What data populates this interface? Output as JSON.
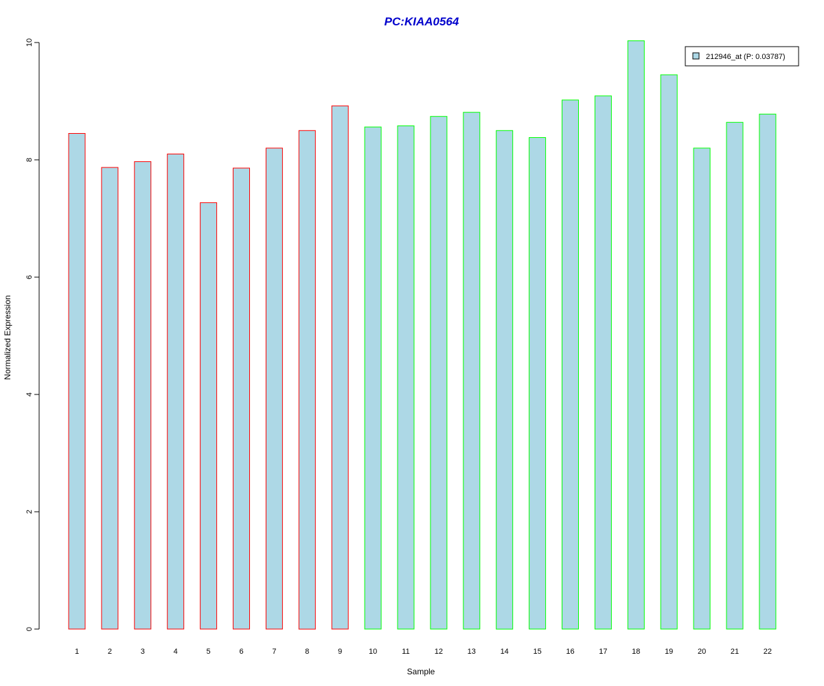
{
  "chart_data": {
    "type": "bar",
    "title": "PC:KIAA0564",
    "xlabel": "Sample",
    "ylabel": "Normalized Expression",
    "ylim": [
      0,
      10
    ],
    "yticks": [
      0,
      2,
      4,
      6,
      8,
      10
    ],
    "categories": [
      "1",
      "2",
      "3",
      "4",
      "5",
      "6",
      "7",
      "8",
      "9",
      "10",
      "11",
      "12",
      "13",
      "14",
      "15",
      "16",
      "17",
      "18",
      "19",
      "20",
      "21",
      "22"
    ],
    "series": [
      {
        "name": "212946_at (P: 0.03787)",
        "values": [
          8.45,
          7.87,
          7.97,
          8.1,
          7.27,
          7.86,
          8.2,
          8.5,
          8.92,
          8.56,
          8.58,
          8.74,
          8.81,
          8.5,
          8.38,
          9.02,
          9.09,
          10.03,
          9.45,
          8.2,
          8.64,
          8.78
        ]
      }
    ],
    "bar_fill_color": "#add8e6",
    "group_border_colors": [
      "#ff0000",
      "#ff0000",
      "#ff0000",
      "#ff0000",
      "#ff0000",
      "#ff0000",
      "#ff0000",
      "#ff0000",
      "#ff0000",
      "#00ff00",
      "#00ff00",
      "#00ff00",
      "#00ff00",
      "#00ff00",
      "#00ff00",
      "#00ff00",
      "#00ff00",
      "#00ff00",
      "#00ff00",
      "#00ff00",
      "#00ff00",
      "#00ff00"
    ],
    "title_color": "#0000cc",
    "legend_position": "top-right",
    "grid": false
  }
}
